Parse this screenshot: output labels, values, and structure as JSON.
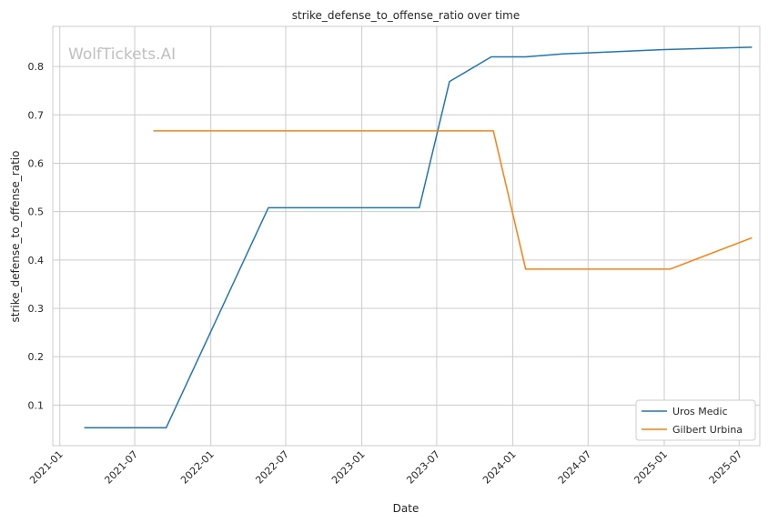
{
  "chart_data": {
    "type": "line",
    "title": "strike_defense_to_offense_ratio over time",
    "xlabel": "Date",
    "ylabel": "strike_defense_to_offense_ratio",
    "watermark": "WolfTickets.AI",
    "x_ticks": [
      "2021-01",
      "2021-07",
      "2022-01",
      "2022-07",
      "2023-01",
      "2023-07",
      "2024-01",
      "2024-07",
      "2025-01",
      "2025-07"
    ],
    "y_ticks": [
      "0.1",
      "0.2",
      "0.3",
      "0.4",
      "0.5",
      "0.6",
      "0.7",
      "0.8"
    ],
    "xlim": [
      "2020-12-15",
      "2025-08-20"
    ],
    "ylim": [
      0.016,
      0.883
    ],
    "grid": true,
    "legend_position": "lower-right",
    "series": [
      {
        "name": "Uros Medic",
        "color": "#1f77b4",
        "points": [
          {
            "x": "2021-03-01",
            "y": 0.053
          },
          {
            "x": "2021-09-15",
            "y": 0.053
          },
          {
            "x": "2022-05-20",
            "y": 0.508
          },
          {
            "x": "2023-05-20",
            "y": 0.508
          },
          {
            "x": "2023-08-01",
            "y": 0.769
          },
          {
            "x": "2023-11-10",
            "y": 0.82
          },
          {
            "x": "2024-02-01",
            "y": 0.82
          },
          {
            "x": "2024-05-01",
            "y": 0.826
          },
          {
            "x": "2025-01-01",
            "y": 0.835
          },
          {
            "x": "2025-08-01",
            "y": 0.84
          }
        ]
      },
      {
        "name": "Gilbert Urbina",
        "color": "#ff7f0e",
        "points": [
          {
            "x": "2021-08-15",
            "y": 0.667
          },
          {
            "x": "2023-11-15",
            "y": 0.667
          },
          {
            "x": "2024-02-01",
            "y": 0.381
          },
          {
            "x": "2025-01-15",
            "y": 0.381
          },
          {
            "x": "2025-08-01",
            "y": 0.446
          }
        ]
      }
    ]
  }
}
